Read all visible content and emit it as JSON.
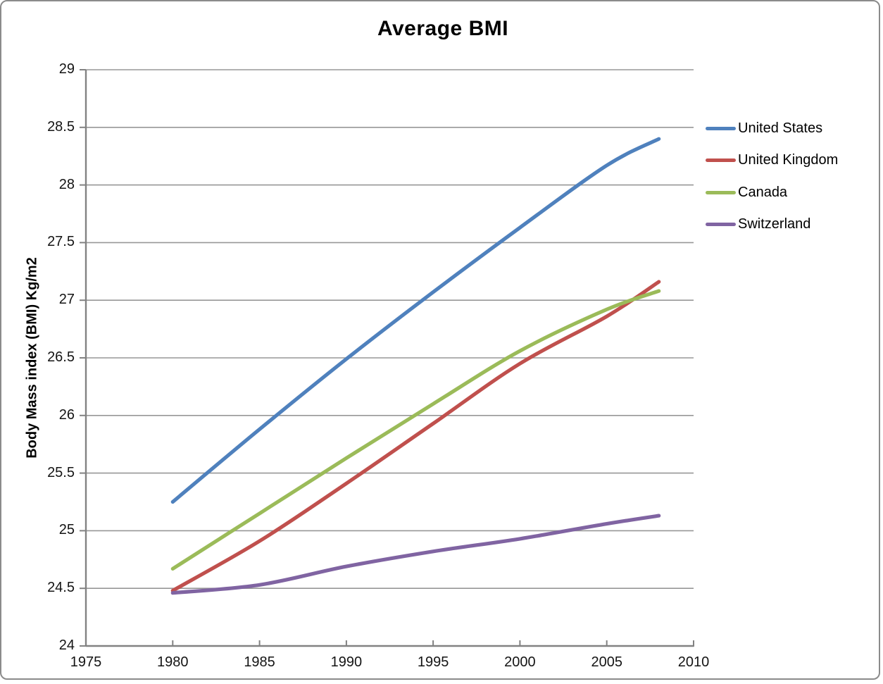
{
  "chart_data": {
    "type": "line",
    "title": "Average BMI",
    "xlabel": "",
    "ylabel": "Body Mass index (BMI) Kg/m2",
    "xlim": [
      1975,
      2010
    ],
    "ylim": [
      24,
      29
    ],
    "x_ticks": [
      "1975",
      "1980",
      "1985",
      "1990",
      "1995",
      "2000",
      "2005",
      "2010"
    ],
    "y_ticks": [
      "29",
      "28.5",
      "28",
      "27.5",
      "27",
      "26.5",
      "26",
      "25.5",
      "25",
      "24.5",
      "24"
    ],
    "grid": "horizontal",
    "legend_position": "right",
    "line_smoothing": true,
    "x": [
      1980,
      1985,
      1990,
      1995,
      2000,
      2005,
      2008
    ],
    "series": [
      {
        "name": "United States",
        "color": "#4F81BD",
        "values": [
          25.25,
          25.88,
          26.49,
          27.07,
          27.63,
          28.17,
          28.4
        ]
      },
      {
        "name": "United Kingdom",
        "color": "#C0504D",
        "values": [
          24.48,
          24.91,
          25.41,
          25.93,
          26.45,
          26.86,
          27.16
        ]
      },
      {
        "name": "Canada",
        "color": "#9BBB59",
        "values": [
          24.67,
          25.15,
          25.63,
          26.1,
          26.56,
          26.92,
          27.08
        ]
      },
      {
        "name": "Switzerland",
        "color": "#8064A2",
        "values": [
          24.46,
          24.53,
          24.69,
          24.82,
          24.93,
          25.06,
          25.13
        ]
      }
    ],
    "colors": {
      "gridline": "#979797",
      "axis": "#828282",
      "tick_label": "#141414",
      "title": "#000000",
      "frame_border": "#8b8b8b"
    }
  }
}
